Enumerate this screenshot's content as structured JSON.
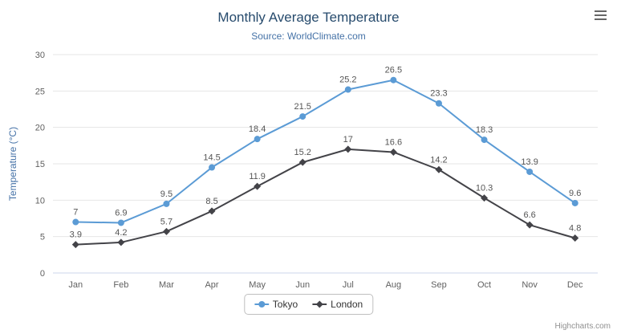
{
  "credits": "Highcharts.com",
  "export_menu": {
    "icon": "hamburger-icon"
  },
  "chart_data": {
    "type": "line",
    "title": "Monthly Average Temperature",
    "subtitle": "Source: WorldClimate.com",
    "categories": [
      "Jan",
      "Feb",
      "Mar",
      "Apr",
      "May",
      "Jun",
      "Jul",
      "Aug",
      "Sep",
      "Oct",
      "Nov",
      "Dec"
    ],
    "series": [
      {
        "name": "Tokyo",
        "color": "#5b9bd5",
        "marker": "circle",
        "values": [
          7,
          6.9,
          9.5,
          14.5,
          18.4,
          21.5,
          25.2,
          26.5,
          23.3,
          18.3,
          13.9,
          9.6
        ]
      },
      {
        "name": "London",
        "color": "#434348",
        "marker": "diamond",
        "values": [
          3.9,
          4.2,
          5.7,
          8.5,
          11.9,
          15.2,
          17,
          16.6,
          14.2,
          10.3,
          6.6,
          4.8
        ]
      }
    ],
    "xlabel": "",
    "ylabel": "Temperature (°C)",
    "ylim": [
      0,
      30
    ],
    "ytick_interval": 5,
    "grid": true,
    "legend_position": "bottom",
    "data_labels": true
  },
  "colors": {
    "grid": "#e6e6e6",
    "axis_line": "#ccd6eb",
    "axis_label": "#606060",
    "data_label": "#555555",
    "title": "#274b6d",
    "subtitle": "#4572a7"
  }
}
